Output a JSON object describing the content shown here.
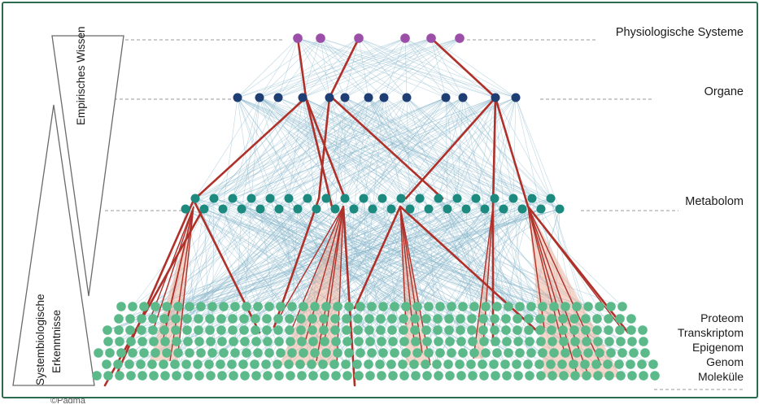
{
  "labels": {
    "physio": "Physiologische Systeme",
    "organe": "Organe",
    "metabolom": "Metabolom",
    "proteom": "Proteom",
    "transkriptom": "Transkriptom",
    "epigenom": "Epigenom",
    "genom": "Genom",
    "molekuele": "Moleküle"
  },
  "side": {
    "empirisch": "Empirisches Wissen",
    "systembio_1": "Systembiologische",
    "systembio_2": "Erkenntnisse"
  },
  "copyright": "©Padma",
  "colors": {
    "frame": "#2b6b4f",
    "physio_node": "#9b4fa8",
    "organ_node": "#1f3f74",
    "metabolom_node": "#1d8a80",
    "base_node": "#5bb98a",
    "thin_edge": "#8ab8cc",
    "red_edge": "#b0302a",
    "red_fan": "#e8a58c"
  },
  "layers": {
    "physiologische_systeme": 6,
    "organe": 14,
    "metabolom_rows": 2
  }
}
